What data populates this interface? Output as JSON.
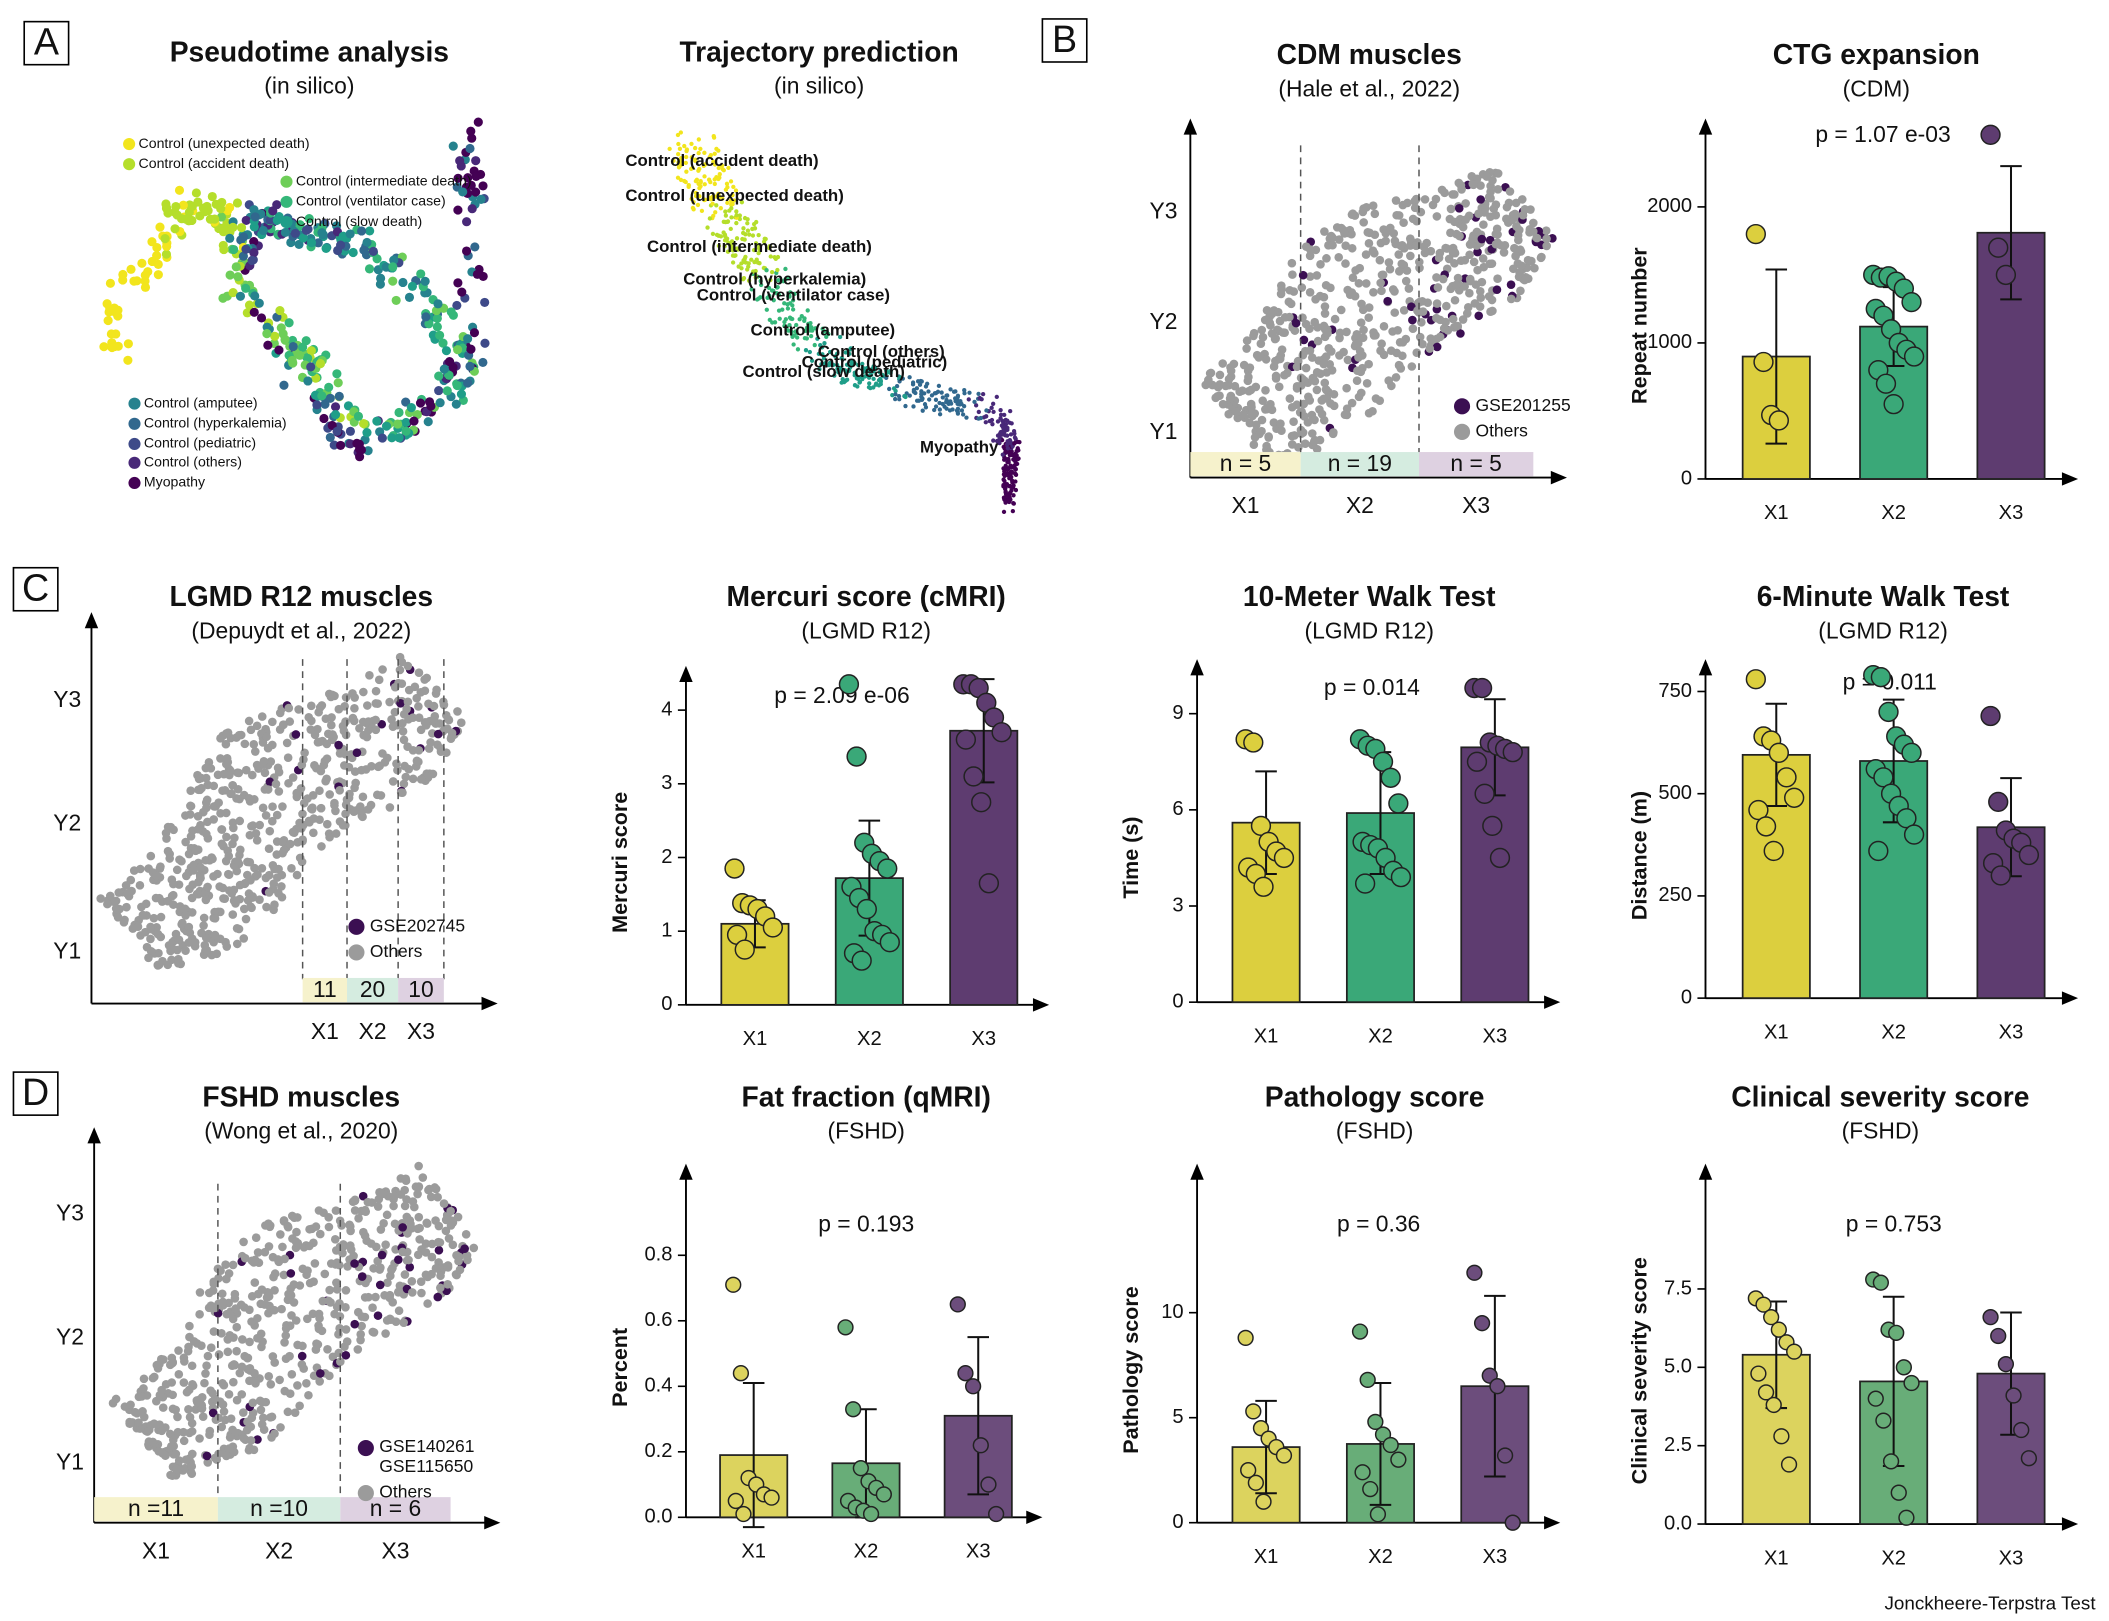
{
  "panels": [
    "A",
    "B",
    "C",
    "D"
  ],
  "footer": "Jonckheere-Terpstra Test",
  "chart_data": [
    {
      "type": "pseudotime",
      "title": "Pseudotime analysis",
      "subtitle": "(in silico)",
      "legend": [
        {
          "name": "Control (unexpected death)",
          "color": "#f2e51d"
        },
        {
          "name": "Control (accident death)",
          "color": "#b5de2b"
        },
        {
          "name": "Control (intermediate death)",
          "color": "#6ece58"
        },
        {
          "name": "Control (ventilator case)",
          "color": "#35b779"
        },
        {
          "name": "Control (slow death)",
          "color": "#1f9e89"
        },
        {
          "name": "Control (amputee)",
          "color": "#26828e"
        },
        {
          "name": "Control (hyperkalemia)",
          "color": "#31688e"
        },
        {
          "name": "Control (pediatric)",
          "color": "#3e4a89"
        },
        {
          "name": "Control (others)",
          "color": "#482878"
        },
        {
          "name": "Myopathy",
          "color": "#440154"
        }
      ]
    },
    {
      "type": "trajectory",
      "title": "Trajectory prediction",
      "subtitle": "(in silico)",
      "labels": [
        "Control (accident death)",
        "Control (unexpected death)",
        "Control (intermediate death)",
        "Control (hyperkalemia)",
        "Control (ventilator case)",
        "Control (amputee)",
        "Control (others)",
        "Control (pediatric)",
        "Control (slow death)",
        "Myopathy"
      ]
    },
    {
      "type": "embedding",
      "title": "CDM muscles",
      "subtitle": "(Hale et al., 2022)",
      "categories": [
        "X1",
        "X2",
        "X3"
      ],
      "y_labels": [
        "Y1",
        "Y2",
        "Y3"
      ],
      "group_labels": [
        "n = 5",
        "n = 19",
        "n = 5"
      ],
      "group_colors": [
        "#f6f2cc",
        "#d5ece0",
        "#ded1e1"
      ],
      "legend": [
        {
          "name": [
            "GSE201255"
          ],
          "color": "#3b0f52"
        },
        {
          "name": [
            "Others"
          ],
          "color": "#9b9b9b"
        }
      ]
    },
    {
      "type": "bar",
      "title": "CTG expansion",
      "subtitle": "(CDM)",
      "y_label": "Repeat number",
      "p_value": "p = 1.07 e-03",
      "categories": [
        "X1",
        "X2",
        "X3"
      ],
      "colors": [
        "#dccf3e",
        "#3aa878",
        "#5e3c70"
      ],
      "values": [
        900,
        1120,
        1810
      ],
      "errors": [
        640,
        290,
        490
      ],
      "points": [
        [
          1800,
          860,
          470,
          430
        ],
        [
          1500,
          1480,
          1490,
          1450,
          1400,
          1300,
          1250,
          1200,
          1100,
          1000,
          950,
          900,
          800,
          700,
          550
        ],
        [
          2530,
          1700,
          1500
        ]
      ],
      "ylim": [
        0,
        2650
      ],
      "yticks": [
        0,
        1000,
        2000
      ]
    },
    {
      "type": "embedding",
      "title": "LGMD R12 muscles",
      "subtitle": "(Depuydt et al., 2022)",
      "categories": [
        "X1",
        "X2",
        "X3"
      ],
      "y_labels": [
        "Y1",
        "Y2",
        "Y3"
      ],
      "group_labels": [
        "11",
        "20",
        "10"
      ],
      "group_colors": [
        "#f6f2cc",
        "#d5ece0",
        "#ded1e1"
      ],
      "legend": [
        {
          "name": [
            "GSE202745"
          ],
          "color": "#3b0f52"
        },
        {
          "name": [
            "Others"
          ],
          "color": "#9b9b9b"
        }
      ]
    },
    {
      "type": "bar",
      "title": "Mercuri score (cMRI)",
      "subtitle": "(LGMD R12)",
      "y_label": "Mercuri score",
      "p_value": "p = 2.09 e-06",
      "categories": [
        "X1",
        "X2",
        "X3"
      ],
      "colors": [
        "#dccf3e",
        "#3aa878",
        "#5e3c70"
      ],
      "values": [
        1.1,
        1.72,
        3.72
      ],
      "errors": [
        0.32,
        0.78,
        0.7
      ],
      "points": [
        [
          1.85,
          1.38,
          1.35,
          1.3,
          1.2,
          1.05,
          0.95,
          0.75
        ],
        [
          4.35,
          3.37,
          2.2,
          2.05,
          1.95,
          1.85,
          1.6,
          1.45,
          1.3,
          1.0,
          0.95,
          0.85,
          0.7,
          0.6
        ],
        [
          4.35,
          4.35,
          4.3,
          4.1,
          3.9,
          3.7,
          3.6,
          3.1,
          2.75,
          1.65
        ]
      ],
      "ylim": [
        0,
        4.6
      ],
      "yticks": [
        0,
        1,
        2,
        3,
        4
      ]
    },
    {
      "type": "bar",
      "title": "10-Meter Walk Test",
      "subtitle": "(LGMD R12)",
      "y_label": "Time (s)",
      "p_value": "p = 0.014",
      "categories": [
        "X1",
        "X2",
        "X3"
      ],
      "colors": [
        "#dccf3e",
        "#3aa878",
        "#5e3c70"
      ],
      "values": [
        5.6,
        5.9,
        7.95
      ],
      "errors": [
        1.6,
        1.9,
        1.5
      ],
      "points": [
        [
          8.2,
          8.1,
          5.5,
          5.0,
          4.7,
          4.5,
          4.2,
          4.0,
          3.6
        ],
        [
          8.2,
          8.0,
          7.9,
          7.5,
          7.0,
          6.2,
          5.0,
          4.9,
          4.8,
          4.5,
          4.1,
          3.9,
          3.7
        ],
        [
          9.8,
          9.8,
          8.1,
          8.0,
          7.9,
          7.8,
          7.5,
          6.5,
          5.5,
          4.5
        ]
      ],
      "ylim": [
        0,
        10.7
      ],
      "yticks": [
        0,
        3,
        6,
        9
      ]
    },
    {
      "type": "bar",
      "title": "6-Minute Walk Test",
      "subtitle": "(LGMD R12)",
      "y_label": "Distance (m)",
      "p_value": "p = 0.011",
      "categories": [
        "X1",
        "X2",
        "X3"
      ],
      "colors": [
        "#dccf3e",
        "#3aa878",
        "#5e3c70"
      ],
      "values": [
        595,
        580,
        418
      ],
      "errors": [
        125,
        150,
        120
      ],
      "points": [
        [
          780,
          640,
          630,
          600,
          540,
          490,
          460,
          420,
          360
        ],
        [
          790,
          785,
          700,
          640,
          620,
          600,
          560,
          540,
          500,
          470,
          440,
          400,
          360
        ],
        [
          690,
          480,
          410,
          390,
          380,
          350,
          330,
          300
        ]
      ],
      "ylim": [
        0,
        829
      ],
      "yticks": [
        0,
        250,
        500,
        750
      ]
    },
    {
      "type": "embedding",
      "title": "FSHD muscles",
      "subtitle": "(Wong et al., 2020)",
      "categories": [
        "X1",
        "X2",
        "X3"
      ],
      "y_labels": [
        "Y1",
        "Y2",
        "Y3"
      ],
      "group_labels": [
        "n =11",
        "n =10",
        "n = 6"
      ],
      "group_colors": [
        "#f6f2cc",
        "#d5ece0",
        "#ded1e1"
      ],
      "legend": [
        {
          "name": [
            "GSE140261",
            "GSE115650"
          ],
          "color": "#3b0f52"
        },
        {
          "name": [
            "Others"
          ],
          "color": "#9b9b9b"
        }
      ]
    },
    {
      "type": "bar",
      "title": "Fat fraction (qMRI)",
      "subtitle": "(FSHD)",
      "y_label": "Percent",
      "p_value": "p = 0.193",
      "categories": [
        "X1",
        "X2",
        "X3"
      ],
      "colors": [
        "#dcd35e",
        "#68ad78",
        "#6c4d7c"
      ],
      "values": [
        0.19,
        0.165,
        0.31
      ],
      "errors": [
        0.22,
        0.165,
        0.24
      ],
      "points": [
        [
          0.71,
          0.44,
          0.12,
          0.1,
          0.07,
          0.06,
          0.05,
          0.01
        ],
        [
          0.58,
          0.33,
          0.15,
          0.11,
          0.09,
          0.07,
          0.05,
          0.03,
          0.02,
          0.01
        ],
        [
          0.65,
          0.44,
          0.4,
          0.22,
          0.1,
          0.01
        ]
      ],
      "ylim": [
        0,
        1.08
      ],
      "yticks": [
        {
          "value": 0,
          "label": "0.0"
        },
        0.2,
        0.4,
        0.6,
        0.8
      ]
    },
    {
      "type": "bar",
      "title": "Pathology score",
      "subtitle": "(FSHD)",
      "y_label": "Pathology score",
      "p_value": "p = 0.36",
      "categories": [
        "X1",
        "X2",
        "X3"
      ],
      "colors": [
        "#dcd35e",
        "#68ad78",
        "#6c4d7c"
      ],
      "values": [
        3.6,
        3.75,
        6.5
      ],
      "errors": [
        2.2,
        2.9,
        4.3
      ],
      "points": [
        [
          8.8,
          5.3,
          4.5,
          4.0,
          3.6,
          3.2,
          2.5,
          1.9,
          1.0
        ],
        [
          9.1,
          6.8,
          4.8,
          4.2,
          3.7,
          3.0,
          2.4,
          1.6,
          0.4
        ],
        [
          11.9,
          9.5,
          7.0,
          6.5,
          3.2,
          0.0
        ]
      ],
      "ylim": [
        0,
        17.1
      ],
      "yticks": [
        0,
        5,
        10
      ]
    },
    {
      "type": "bar",
      "title": "Clinical severity score",
      "subtitle": "(FSHD)",
      "y_label": "Clinical severity score",
      "p_value": "p = 0.753",
      "categories": [
        "X1",
        "X2",
        "X3"
      ],
      "colors": [
        "#dcd35e",
        "#68ad78",
        "#6c4d7c"
      ],
      "values": [
        5.4,
        4.55,
        4.8
      ],
      "errors": [
        1.7,
        2.7,
        1.95
      ],
      "points": [
        [
          7.2,
          7.0,
          6.6,
          6.2,
          5.8,
          5.5,
          4.8,
          4.2,
          3.8,
          2.8,
          1.9
        ],
        [
          7.8,
          7.7,
          6.2,
          6.1,
          5.0,
          4.5,
          4.0,
          3.3,
          2.0,
          1.0,
          0.2
        ],
        [
          6.6,
          6.0,
          5.1,
          4.1,
          3.0,
          2.1
        ]
      ],
      "ylim": [
        0,
        11.5
      ],
      "yticks": [
        {
          "value": 0,
          "label": "0.0"
        },
        2.5,
        {
          "value": 5,
          "label": "5.0"
        },
        7.5
      ]
    }
  ]
}
